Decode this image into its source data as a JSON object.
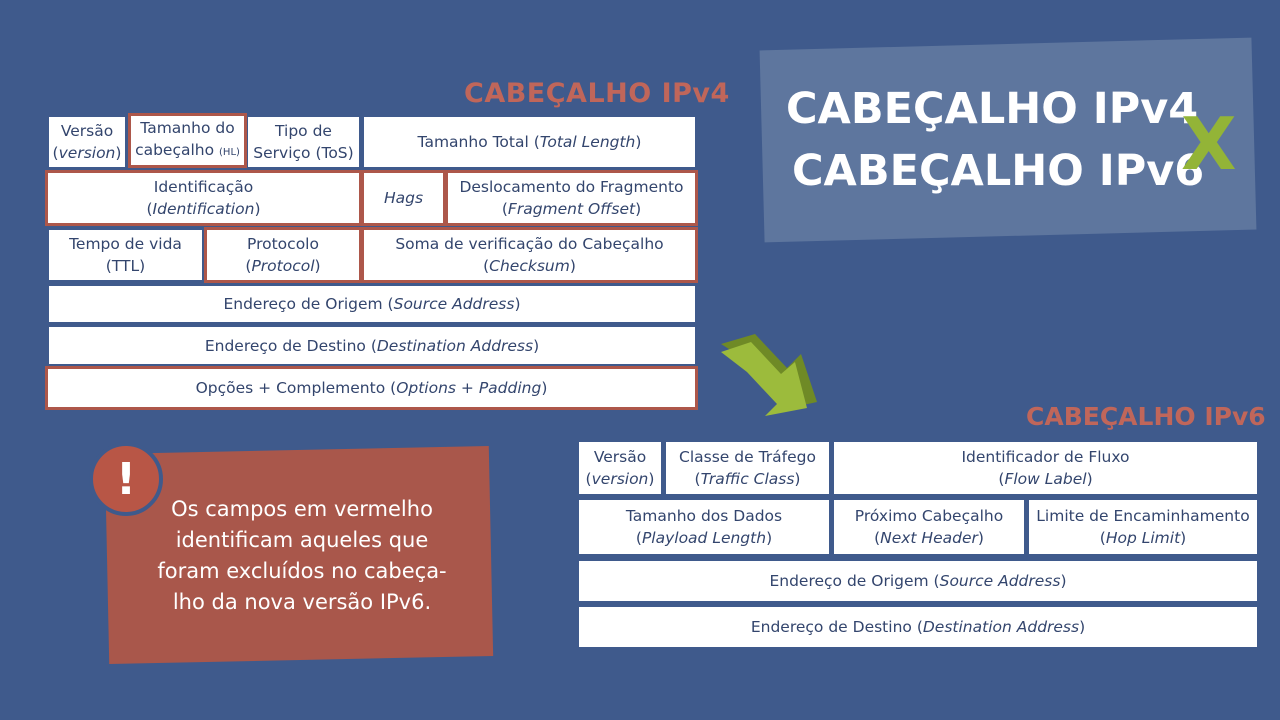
{
  "ipv4": {
    "title": "CABEÇALHO IPv4",
    "version": {
      "label": "Versão",
      "en": "version"
    },
    "hl": {
      "label": "Tamanho do",
      "label2": "cabeçalho",
      "abbr": "(HL)"
    },
    "tos": {
      "label": "Tipo de",
      "label2": "Serviço (ToS)"
    },
    "total_length": {
      "label": "Tamanho Total",
      "en": "Total Length"
    },
    "identification": {
      "label": "Identificação",
      "en": "Identification"
    },
    "flags": {
      "label": "Hags"
    },
    "frag_offset": {
      "label": "Deslocamento do Fragmento",
      "en": "Fragment Offset"
    },
    "ttl": {
      "label": "Tempo de vida",
      "en": "(TTL)"
    },
    "protocol": {
      "label": "Protocolo",
      "en": "Protocol"
    },
    "checksum": {
      "label": "Soma de verificação do Cabeçalho",
      "en": "Checksum"
    },
    "source": {
      "label": "Endereço de Origem",
      "en": "Source Address"
    },
    "destination": {
      "label": "Endereço de Destino",
      "en": "Destination Address"
    },
    "options": {
      "label": "Opções + Complemento",
      "en": "Options + Padding"
    }
  },
  "heading": {
    "line1": "CABEÇALHO IPv4",
    "line2": "CABEÇALHO IPv6",
    "x": "X"
  },
  "ipv6": {
    "title": "CABEÇALHO IPv6",
    "version": {
      "label": "Versão",
      "en": "version"
    },
    "traffic_class": {
      "label": "Classe de Tráfego",
      "en": "Traffic Class"
    },
    "flow_label": {
      "label": "Identificador de Fluxo",
      "en": "Flow Label"
    },
    "payload_length": {
      "label": "Tamanho dos Dados",
      "en": "Playload Length"
    },
    "next_header": {
      "label": "Próximo Cabeçalho",
      "en": "Next Header"
    },
    "hop_limit": {
      "label": "Limite de Encaminhamento",
      "en": "Hop Limit"
    },
    "source": {
      "label": "Endereço de Origem",
      "en": "Source Address"
    },
    "destination": {
      "label": "Endereço de Destino",
      "en": "Destination Address"
    }
  },
  "note": {
    "icon": "!",
    "line1": "Os campos em vermelho",
    "line2": "identificam aqueles que",
    "line3": "foram excluídos no cabeça-",
    "line4": "lho da nova versão IPv6."
  },
  "colors": {
    "background": "#3f5a8c",
    "red": "#ad574a",
    "accent_green": "#93b437",
    "text": "#33456d"
  }
}
